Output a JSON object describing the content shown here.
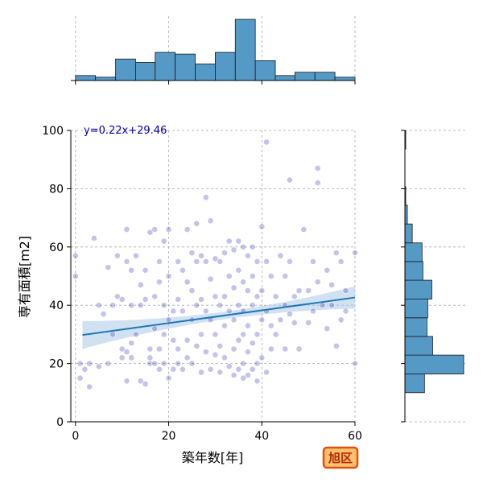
{
  "chart_data": {
    "type": "scatter",
    "xlabel": "築年数[年]",
    "ylabel": "専有面積[m2]",
    "xlim": [
      -1,
      60
    ],
    "ylim": [
      0,
      100
    ],
    "x_ticks": [
      "0",
      "20",
      "40",
      "60"
    ],
    "y_ticks": [
      "0",
      "20",
      "40",
      "60",
      "80",
      "100"
    ],
    "grid": true,
    "regression": {
      "slope": 0.22,
      "intercept": 29.46,
      "label": "y=0.22x+29.46"
    },
    "badge": "旭区",
    "colors": {
      "points": "#2b2bb8",
      "hist": "#5599c7",
      "line": "#1f77b4",
      "band": "#a9c8e6",
      "badge_fill": "#ffc070",
      "badge_stroke": "#e05010"
    },
    "marginal_x": {
      "bin_edges": [
        0,
        4.3,
        8.6,
        12.9,
        17.1,
        21.4,
        25.7,
        30,
        34.3,
        38.6,
        42.9,
        47.1,
        51.4,
        55.7,
        60
      ],
      "counts": [
        3,
        2,
        13,
        11,
        17,
        16,
        10,
        17,
        37,
        12,
        3,
        5,
        5,
        2
      ]
    },
    "marginal_y": {
      "bin_edges": [
        10,
        16.4,
        22.9,
        29.3,
        35.7,
        42.1,
        48.6,
        55,
        61.4,
        67.9,
        74.3,
        80.7,
        87.1,
        93.6,
        100
      ],
      "counts": [
        24,
        72,
        34,
        27,
        28,
        33,
        22,
        21,
        9,
        3,
        1,
        0,
        0,
        1
      ]
    },
    "points": [
      [
        0,
        57
      ],
      [
        0,
        50
      ],
      [
        1,
        20
      ],
      [
        1,
        15
      ],
      [
        2,
        18
      ],
      [
        3,
        12
      ],
      [
        3,
        20
      ],
      [
        4,
        63
      ],
      [
        5,
        40
      ],
      [
        5,
        19
      ],
      [
        6,
        37
      ],
      [
        7,
        53
      ],
      [
        7,
        20
      ],
      [
        8,
        30
      ],
      [
        8,
        40
      ],
      [
        9,
        57
      ],
      [
        9,
        43
      ],
      [
        10,
        25
      ],
      [
        10,
        22
      ],
      [
        10,
        42
      ],
      [
        11,
        66
      ],
      [
        11,
        55
      ],
      [
        11,
        14
      ],
      [
        11,
        24
      ],
      [
        12,
        52
      ],
      [
        12,
        40
      ],
      [
        12,
        27
      ],
      [
        12,
        22
      ],
      [
        13,
        57
      ],
      [
        13,
        30
      ],
      [
        14,
        47
      ],
      [
        14,
        40
      ],
      [
        14,
        14
      ],
      [
        15,
        13
      ],
      [
        15,
        52
      ],
      [
        15,
        42
      ],
      [
        16,
        25
      ],
      [
        16,
        20
      ],
      [
        16,
        65
      ],
      [
        16,
        22
      ],
      [
        17,
        66
      ],
      [
        17,
        43
      ],
      [
        17,
        32
      ],
      [
        17,
        20
      ],
      [
        18,
        55
      ],
      [
        18,
        48
      ],
      [
        18,
        25
      ],
      [
        18,
        18
      ],
      [
        19,
        40
      ],
      [
        19,
        30
      ],
      [
        19,
        20
      ],
      [
        19,
        62
      ],
      [
        20,
        66
      ],
      [
        20,
        50
      ],
      [
        20,
        35
      ],
      [
        20,
        15
      ],
      [
        21,
        38
      ],
      [
        21,
        28
      ],
      [
        21,
        18
      ],
      [
        22,
        55
      ],
      [
        22,
        42
      ],
      [
        22,
        25
      ],
      [
        22,
        20
      ],
      [
        23,
        52
      ],
      [
        23,
        38
      ],
      [
        23,
        18
      ],
      [
        24,
        66
      ],
      [
        24,
        48
      ],
      [
        24,
        28
      ],
      [
        24,
        22
      ],
      [
        25,
        58
      ],
      [
        25,
        45
      ],
      [
        25,
        35
      ],
      [
        25,
        20
      ],
      [
        26,
        68
      ],
      [
        26,
        55
      ],
      [
        26,
        40
      ],
      [
        26,
        26
      ],
      [
        27,
        57
      ],
      [
        27,
        42
      ],
      [
        27,
        30
      ],
      [
        27,
        17
      ],
      [
        28,
        77
      ],
      [
        28,
        55
      ],
      [
        28,
        38
      ],
      [
        28,
        24
      ],
      [
        29,
        69
      ],
      [
        29,
        49
      ],
      [
        29,
        35
      ],
      [
        29,
        18
      ],
      [
        30,
        56
      ],
      [
        30,
        43
      ],
      [
        30,
        30
      ],
      [
        30,
        23
      ],
      [
        31,
        55
      ],
      [
        31,
        40
      ],
      [
        31,
        26
      ],
      [
        31,
        17
      ],
      [
        32,
        58
      ],
      [
        32,
        43
      ],
      [
        32,
        33
      ],
      [
        32,
        22
      ],
      [
        33,
        62
      ],
      [
        33,
        50
      ],
      [
        33,
        38
      ],
      [
        33,
        19
      ],
      [
        34,
        59
      ],
      [
        34,
        46
      ],
      [
        34,
        35
      ],
      [
        34,
        25
      ],
      [
        34,
        16
      ],
      [
        35,
        62
      ],
      [
        35,
        52
      ],
      [
        35,
        40
      ],
      [
        35,
        28
      ],
      [
        35,
        18
      ],
      [
        36,
        60
      ],
      [
        36,
        48
      ],
      [
        36,
        38
      ],
      [
        36,
        30
      ],
      [
        36,
        20
      ],
      [
        36,
        15
      ],
      [
        37,
        57
      ],
      [
        37,
        45
      ],
      [
        37,
        33
      ],
      [
        37,
        24
      ],
      [
        37,
        16
      ],
      [
        38,
        60
      ],
      [
        38,
        50
      ],
      [
        38,
        40
      ],
      [
        38,
        27
      ],
      [
        38,
        18
      ],
      [
        39,
        55
      ],
      [
        39,
        43
      ],
      [
        39,
        30
      ],
      [
        39,
        20
      ],
      [
        39,
        14
      ],
      [
        40,
        67
      ],
      [
        40,
        45
      ],
      [
        40,
        35
      ],
      [
        40,
        22
      ],
      [
        41,
        96
      ],
      [
        41,
        55
      ],
      [
        41,
        38
      ],
      [
        41,
        17
      ],
      [
        42,
        50
      ],
      [
        42,
        33
      ],
      [
        42,
        25
      ],
      [
        43,
        43
      ],
      [
        43,
        30
      ],
      [
        44,
        57
      ],
      [
        44,
        35
      ],
      [
        45,
        50
      ],
      [
        45,
        40
      ],
      [
        45,
        25
      ],
      [
        46,
        83
      ],
      [
        46,
        55
      ],
      [
        46,
        37
      ],
      [
        47,
        43
      ],
      [
        47,
        34
      ],
      [
        48,
        45
      ],
      [
        48,
        25
      ],
      [
        49,
        66
      ],
      [
        50,
        45
      ],
      [
        50,
        34
      ],
      [
        51,
        55
      ],
      [
        51,
        38
      ],
      [
        52,
        87
      ],
      [
        52,
        82
      ],
      [
        52,
        48
      ],
      [
        53,
        40
      ],
      [
        54,
        52
      ],
      [
        54,
        32
      ],
      [
        55,
        47
      ],
      [
        55,
        40
      ],
      [
        56,
        58
      ],
      [
        56,
        26
      ],
      [
        57,
        55
      ],
      [
        57,
        35
      ],
      [
        58,
        45
      ],
      [
        58,
        38
      ],
      [
        60,
        58
      ],
      [
        60,
        20
      ]
    ]
  }
}
